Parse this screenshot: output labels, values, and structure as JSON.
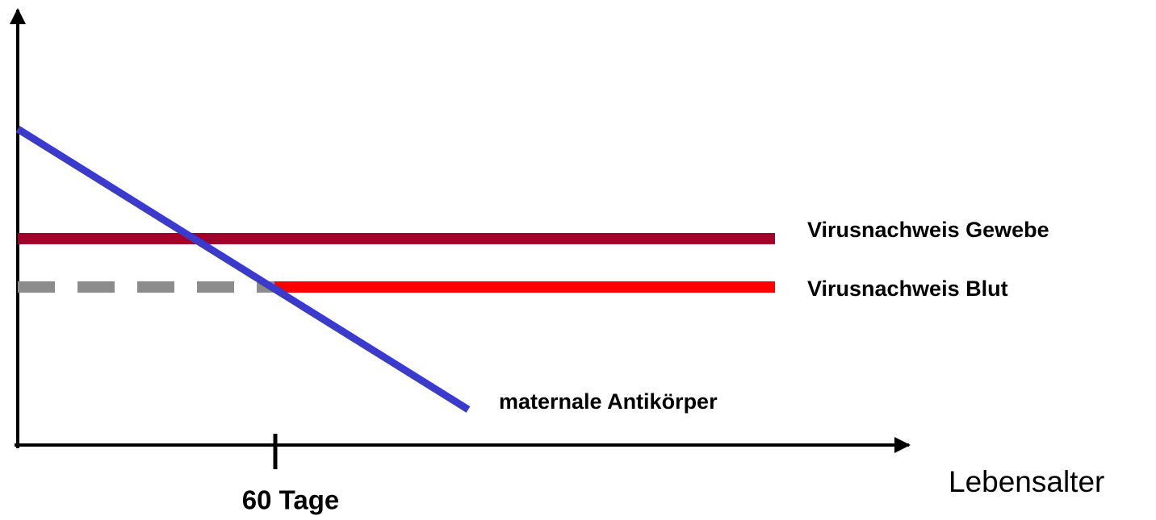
{
  "labels": {
    "tissue": "Virusnachweis Gewebe",
    "blood": "Virusnachweis Blut",
    "antibodies": "maternale Antikörper",
    "tick": "60 Tage",
    "x_axis": "Lebensalter"
  }
}
